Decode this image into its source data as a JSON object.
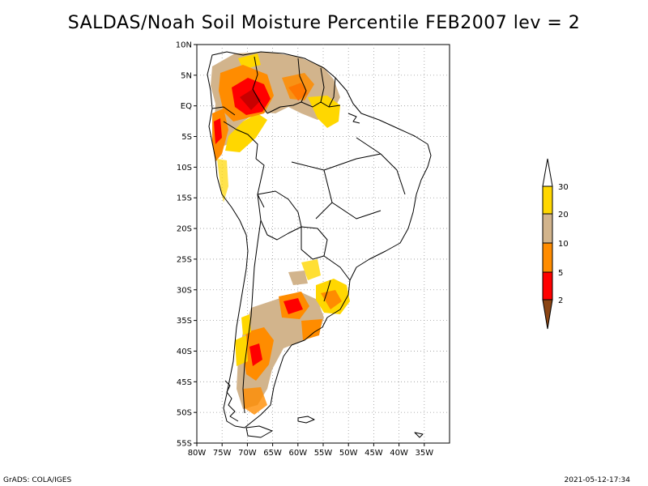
{
  "title": "SALDAS/Noah Soil Moisture Percentile FEB2007 lev = 2",
  "footer": {
    "left": "GrADS: COLA/IGES",
    "right": "2021-05-12-17:34"
  },
  "map": {
    "lon_range": [
      -80,
      -30
    ],
    "lat_range": [
      -55,
      10
    ],
    "lat_labels": [
      "10N",
      "5N",
      "EQ",
      "5S",
      "10S",
      "15S",
      "20S",
      "25S",
      "30S",
      "35S",
      "40S",
      "45S",
      "50S",
      "55S"
    ],
    "lon_labels": [
      "80W",
      "75W",
      "70W",
      "65W",
      "60W",
      "55W",
      "50W",
      "45W",
      "40W",
      "35W"
    ],
    "gridlines": "dotted"
  },
  "legend": {
    "labels": [
      "2",
      "5",
      "10",
      "20",
      "30"
    ],
    "colors": {
      "below_2": "#8b4513",
      "2_to_5": "#ff0000",
      "5_to_10": "#ff8c00",
      "10_to_20": "#d2b48c",
      "20_to_30": "#ffd700",
      "above_30": "#ffffff"
    }
  }
}
